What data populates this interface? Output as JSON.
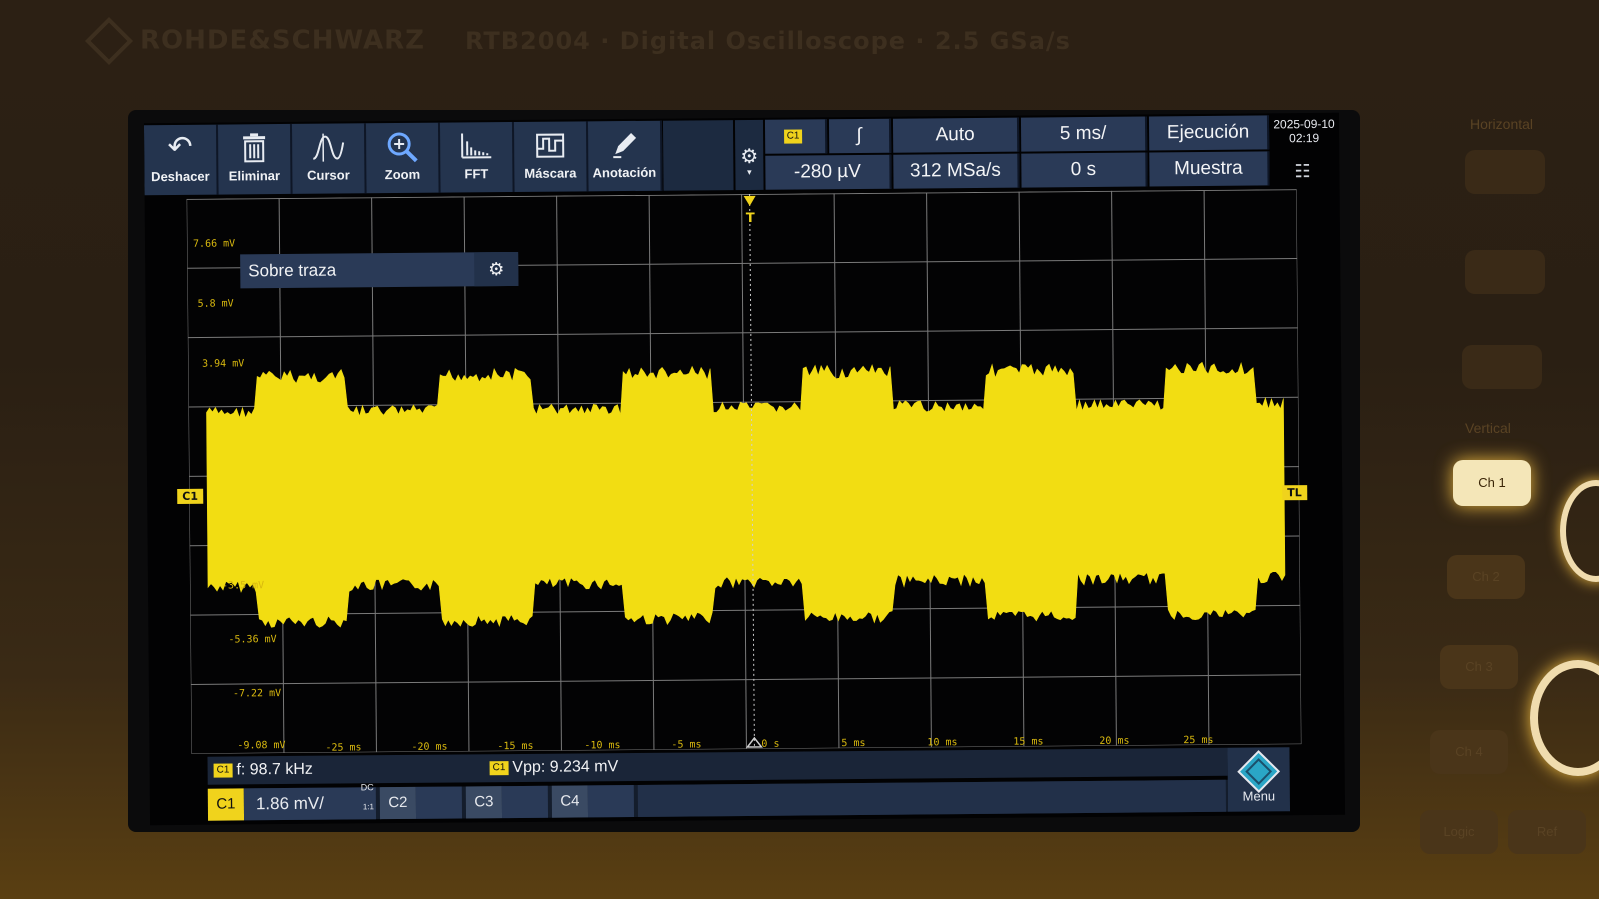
{
  "device": {
    "brand": "ROHDE&SCHWARZ",
    "model": "RTB2004 · Digital Oscilloscope · 2.5 GSa/s"
  },
  "toolbar": {
    "items": [
      {
        "label": "Deshacer",
        "icon": "undo-icon"
      },
      {
        "label": "Eliminar",
        "icon": "trash-icon"
      },
      {
        "label": "Cursor",
        "icon": "cursor-wave-icon"
      },
      {
        "label": "Zoom",
        "icon": "zoom-icon"
      },
      {
        "label": "FFT",
        "icon": "fft-icon"
      },
      {
        "label": "Máscara",
        "icon": "mask-icon"
      },
      {
        "label": "Anotación",
        "icon": "pencil-icon"
      }
    ]
  },
  "info": {
    "trigger_source": "C1",
    "trigger_level": "-280 µV",
    "trigger_mode": "Auto",
    "sample_rate": "312 MSa/s",
    "timebase": "5 ms/",
    "time_offset": "0 s",
    "run_state": "Ejecución",
    "acq_mode": "Muestra",
    "date": "2025-09-10",
    "time": "02:19"
  },
  "plot": {
    "overlay_label": "Sobre traza",
    "y_labels": [
      "7.66 mV",
      "5.8 mV",
      "3.94 mV",
      "-3.5 mV",
      "-5.36 mV",
      "-7.22 mV",
      "-9.08 mV"
    ],
    "x_labels": [
      "-25 ms",
      "-20 ms",
      "-15 ms",
      "-10 ms",
      "-5 ms",
      "0 s",
      "5 ms",
      "10 ms",
      "15 ms",
      "20 ms",
      "25 ms"
    ],
    "channel_marker": "C1",
    "trigger_level_marker": "TL",
    "trigger_position_marker": "T",
    "trace_color": "#f2dd12"
  },
  "measurements": {
    "freq_tag": "C1",
    "frequency": "f: 98.7 kHz",
    "vpp_tag": "C1",
    "vpp": "Vpp: 9.234 mV"
  },
  "channels": {
    "c1": {
      "label": "C1",
      "scale": "1.86 mV/",
      "coupling_top": "DC",
      "coupling_bottom": "1:1"
    },
    "c2": {
      "label": "C2"
    },
    "c3": {
      "label": "C3"
    },
    "c4": {
      "label": "C4"
    }
  },
  "menu_label": "Menu",
  "side_panel": {
    "horizontal": "Horizontal",
    "vertical": "Vertical",
    "ch1": "Ch 1",
    "ch2": "Ch 2",
    "ch3": "Ch 3",
    "ch4": "Ch 4",
    "logic": "Logic",
    "ref": "Ref"
  }
}
